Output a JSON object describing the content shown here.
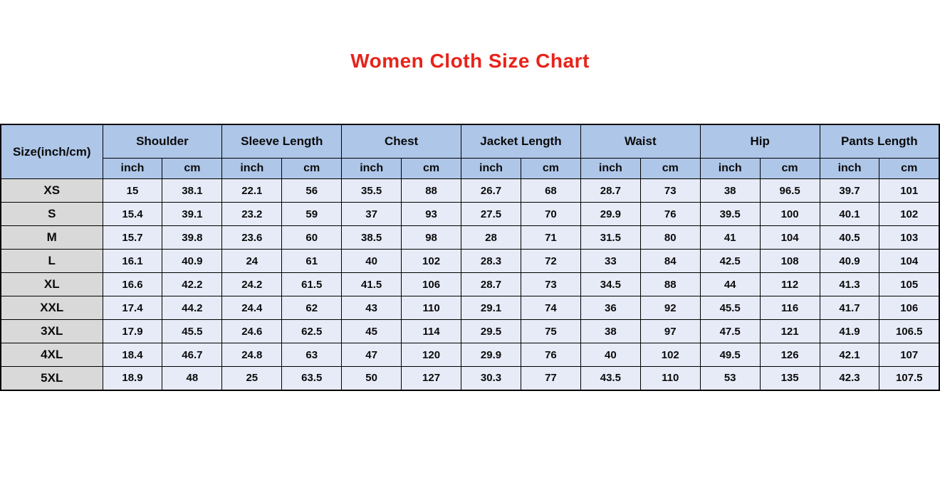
{
  "title": "Women Cloth Size Chart",
  "colors": {
    "title": "#e8231a",
    "header_bg": "#aec6e8",
    "size_col_bg": "#d9d9d9",
    "cell_bg": "#e7ebf7",
    "border": "#000000"
  },
  "chart_data": {
    "type": "table",
    "title": "Women Cloth Size Chart",
    "corner_header": "Size(inch/cm)",
    "column_groups": [
      "Shoulder",
      "Sleeve Length",
      "Chest",
      "Jacket Length",
      "Waist",
      "Hip",
      "Pants Length"
    ],
    "sub_headers": [
      "inch",
      "cm"
    ],
    "rows": [
      {
        "size": "XS",
        "values": [
          15,
          38.1,
          22.1,
          56,
          35.5,
          88,
          26.7,
          68,
          28.7,
          73,
          38,
          96.5,
          39.7,
          101
        ]
      },
      {
        "size": "S",
        "values": [
          15.4,
          39.1,
          23.2,
          59,
          37,
          93,
          27.5,
          70,
          29.9,
          76,
          39.5,
          100,
          40.1,
          102
        ]
      },
      {
        "size": "M",
        "values": [
          15.7,
          39.8,
          23.6,
          60,
          38.5,
          98,
          28,
          71,
          31.5,
          80,
          41,
          104,
          40.5,
          103
        ]
      },
      {
        "size": "L",
        "values": [
          16.1,
          40.9,
          24,
          61,
          40,
          102,
          28.3,
          72,
          33,
          84,
          42.5,
          108,
          40.9,
          104
        ]
      },
      {
        "size": "XL",
        "values": [
          16.6,
          42.2,
          24.2,
          61.5,
          41.5,
          106,
          28.7,
          73,
          34.5,
          88,
          44,
          112,
          41.3,
          105
        ]
      },
      {
        "size": "XXL",
        "values": [
          17.4,
          44.2,
          24.4,
          62,
          43,
          110,
          29.1,
          74,
          36,
          92,
          45.5,
          116,
          41.7,
          106
        ]
      },
      {
        "size": "3XL",
        "values": [
          17.9,
          45.5,
          24.6,
          62.5,
          45,
          114,
          29.5,
          75,
          38,
          97,
          47.5,
          121,
          41.9,
          106.5
        ]
      },
      {
        "size": "4XL",
        "values": [
          18.4,
          46.7,
          24.8,
          63,
          47,
          120,
          29.9,
          76,
          40,
          102,
          49.5,
          126,
          42.1,
          107
        ]
      },
      {
        "size": "5XL",
        "values": [
          18.9,
          48,
          25,
          63.5,
          50,
          127,
          30.3,
          77,
          43.5,
          110,
          53,
          135,
          42.3,
          107.5
        ]
      }
    ]
  }
}
